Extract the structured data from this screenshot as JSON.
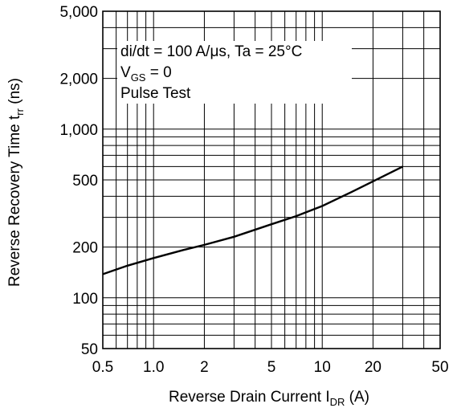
{
  "chart_data": {
    "type": "line",
    "x_scale": "log",
    "y_scale": "log",
    "xlim": [
      0.5,
      50
    ],
    "ylim": [
      50,
      5000
    ],
    "grid": true,
    "x_ticks": [
      {
        "value": 0.5,
        "label": "0.5"
      },
      {
        "value": 1,
        "label": "1.0"
      },
      {
        "value": 2,
        "label": "2"
      },
      {
        "value": 5,
        "label": "5"
      },
      {
        "value": 10,
        "label": "10"
      },
      {
        "value": 20,
        "label": "20"
      },
      {
        "value": 50,
        "label": "50"
      }
    ],
    "y_ticks": [
      {
        "value": 50,
        "label": "50"
      },
      {
        "value": 100,
        "label": "100"
      },
      {
        "value": 200,
        "label": "200"
      },
      {
        "value": 500,
        "label": "500"
      },
      {
        "value": 1000,
        "label": "1,000"
      },
      {
        "value": 2000,
        "label": "2,000"
      },
      {
        "value": 5000,
        "label": "5,000"
      }
    ],
    "xlabel": {
      "main": "Reverse Drain Current  I",
      "sub": "DR",
      "unit": "  (A)"
    },
    "ylabel": {
      "main": "Reverse Recovery Time  t",
      "sub": "rr",
      "unit": "  (ns)"
    },
    "annotations": {
      "line1": "di/dt = 100 A/μs, Ta = 25°C",
      "line2_main": "V",
      "line2_sub": "GS",
      "line2_rest": " = 0",
      "line3": "Pulse Test"
    },
    "series": [
      {
        "x": [
          0.5,
          0.7,
          1.0,
          1.5,
          2,
          3,
          5,
          7,
          10,
          15,
          20,
          30
        ],
        "y": [
          138,
          155,
          172,
          192,
          206,
          230,
          273,
          305,
          350,
          425,
          490,
          600
        ]
      }
    ]
  }
}
